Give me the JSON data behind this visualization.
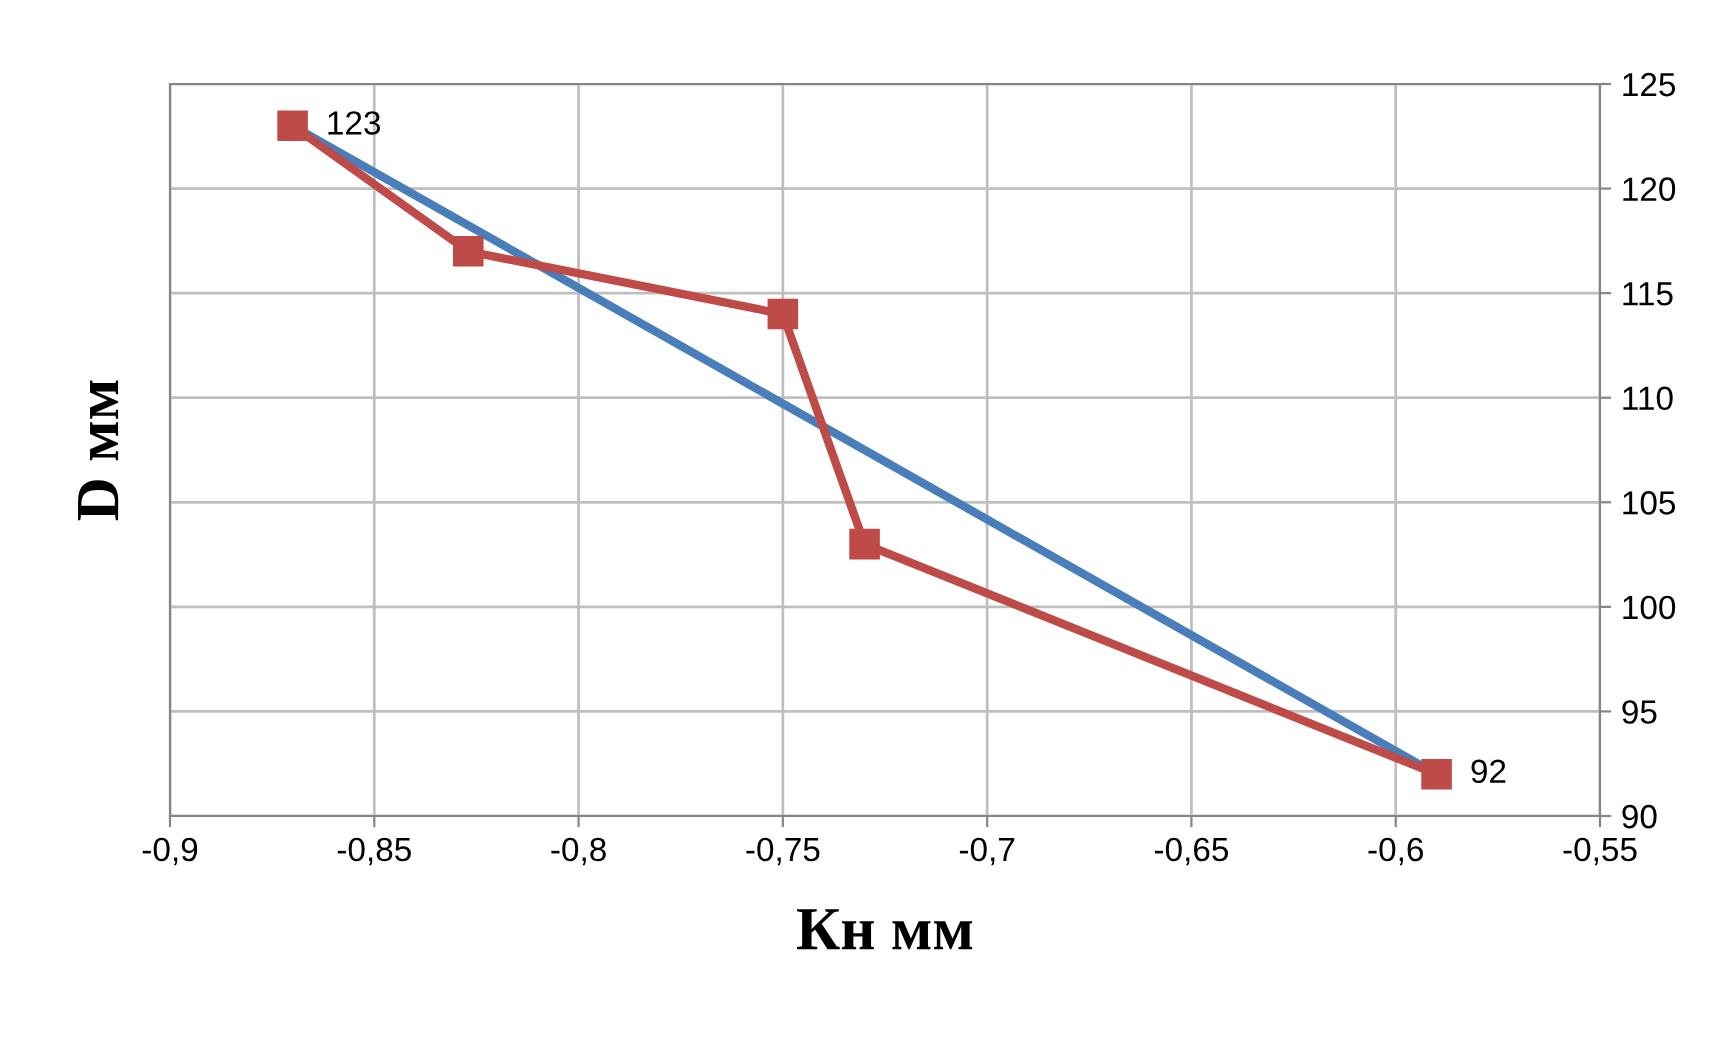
{
  "chart_data": {
    "type": "line",
    "xlabel": "Кн мм",
    "ylabel": "D мм",
    "series": [
      {
        "color": "#4a7ebb",
        "x": [
          -0.87,
          -0.59
        ],
        "values": [
          123,
          92
        ],
        "marker": "none"
      },
      {
        "color": "#be4b48",
        "x": [
          -0.87,
          -0.827,
          -0.75,
          -0.73,
          -0.59
        ],
        "values": [
          123,
          117,
          114,
          103,
          92
        ],
        "marker": "square"
      }
    ],
    "annotations": [
      {
        "text": "123",
        "x": -0.87,
        "y": 123
      },
      {
        "text": "92",
        "x": -0.59,
        "y": 92
      }
    ],
    "xlim": [
      -0.9,
      -0.55
    ],
    "xticks": [
      {
        "value": -0.9,
        "label": "-0,9"
      },
      {
        "value": -0.85,
        "label": "-0,85"
      },
      {
        "value": -0.8,
        "label": "-0,8"
      },
      {
        "value": -0.75,
        "label": "-0,75"
      },
      {
        "value": -0.7,
        "label": "-0,7"
      },
      {
        "value": -0.65,
        "label": "-0,65"
      },
      {
        "value": -0.6,
        "label": "-0,6"
      },
      {
        "value": -0.55,
        "label": "-0,55"
      }
    ],
    "ylim": [
      90,
      125
    ],
    "yticks": [
      90,
      95,
      100,
      105,
      110,
      115,
      120,
      125
    ],
    "grid": true,
    "legend": false,
    "line_style": "solid"
  }
}
